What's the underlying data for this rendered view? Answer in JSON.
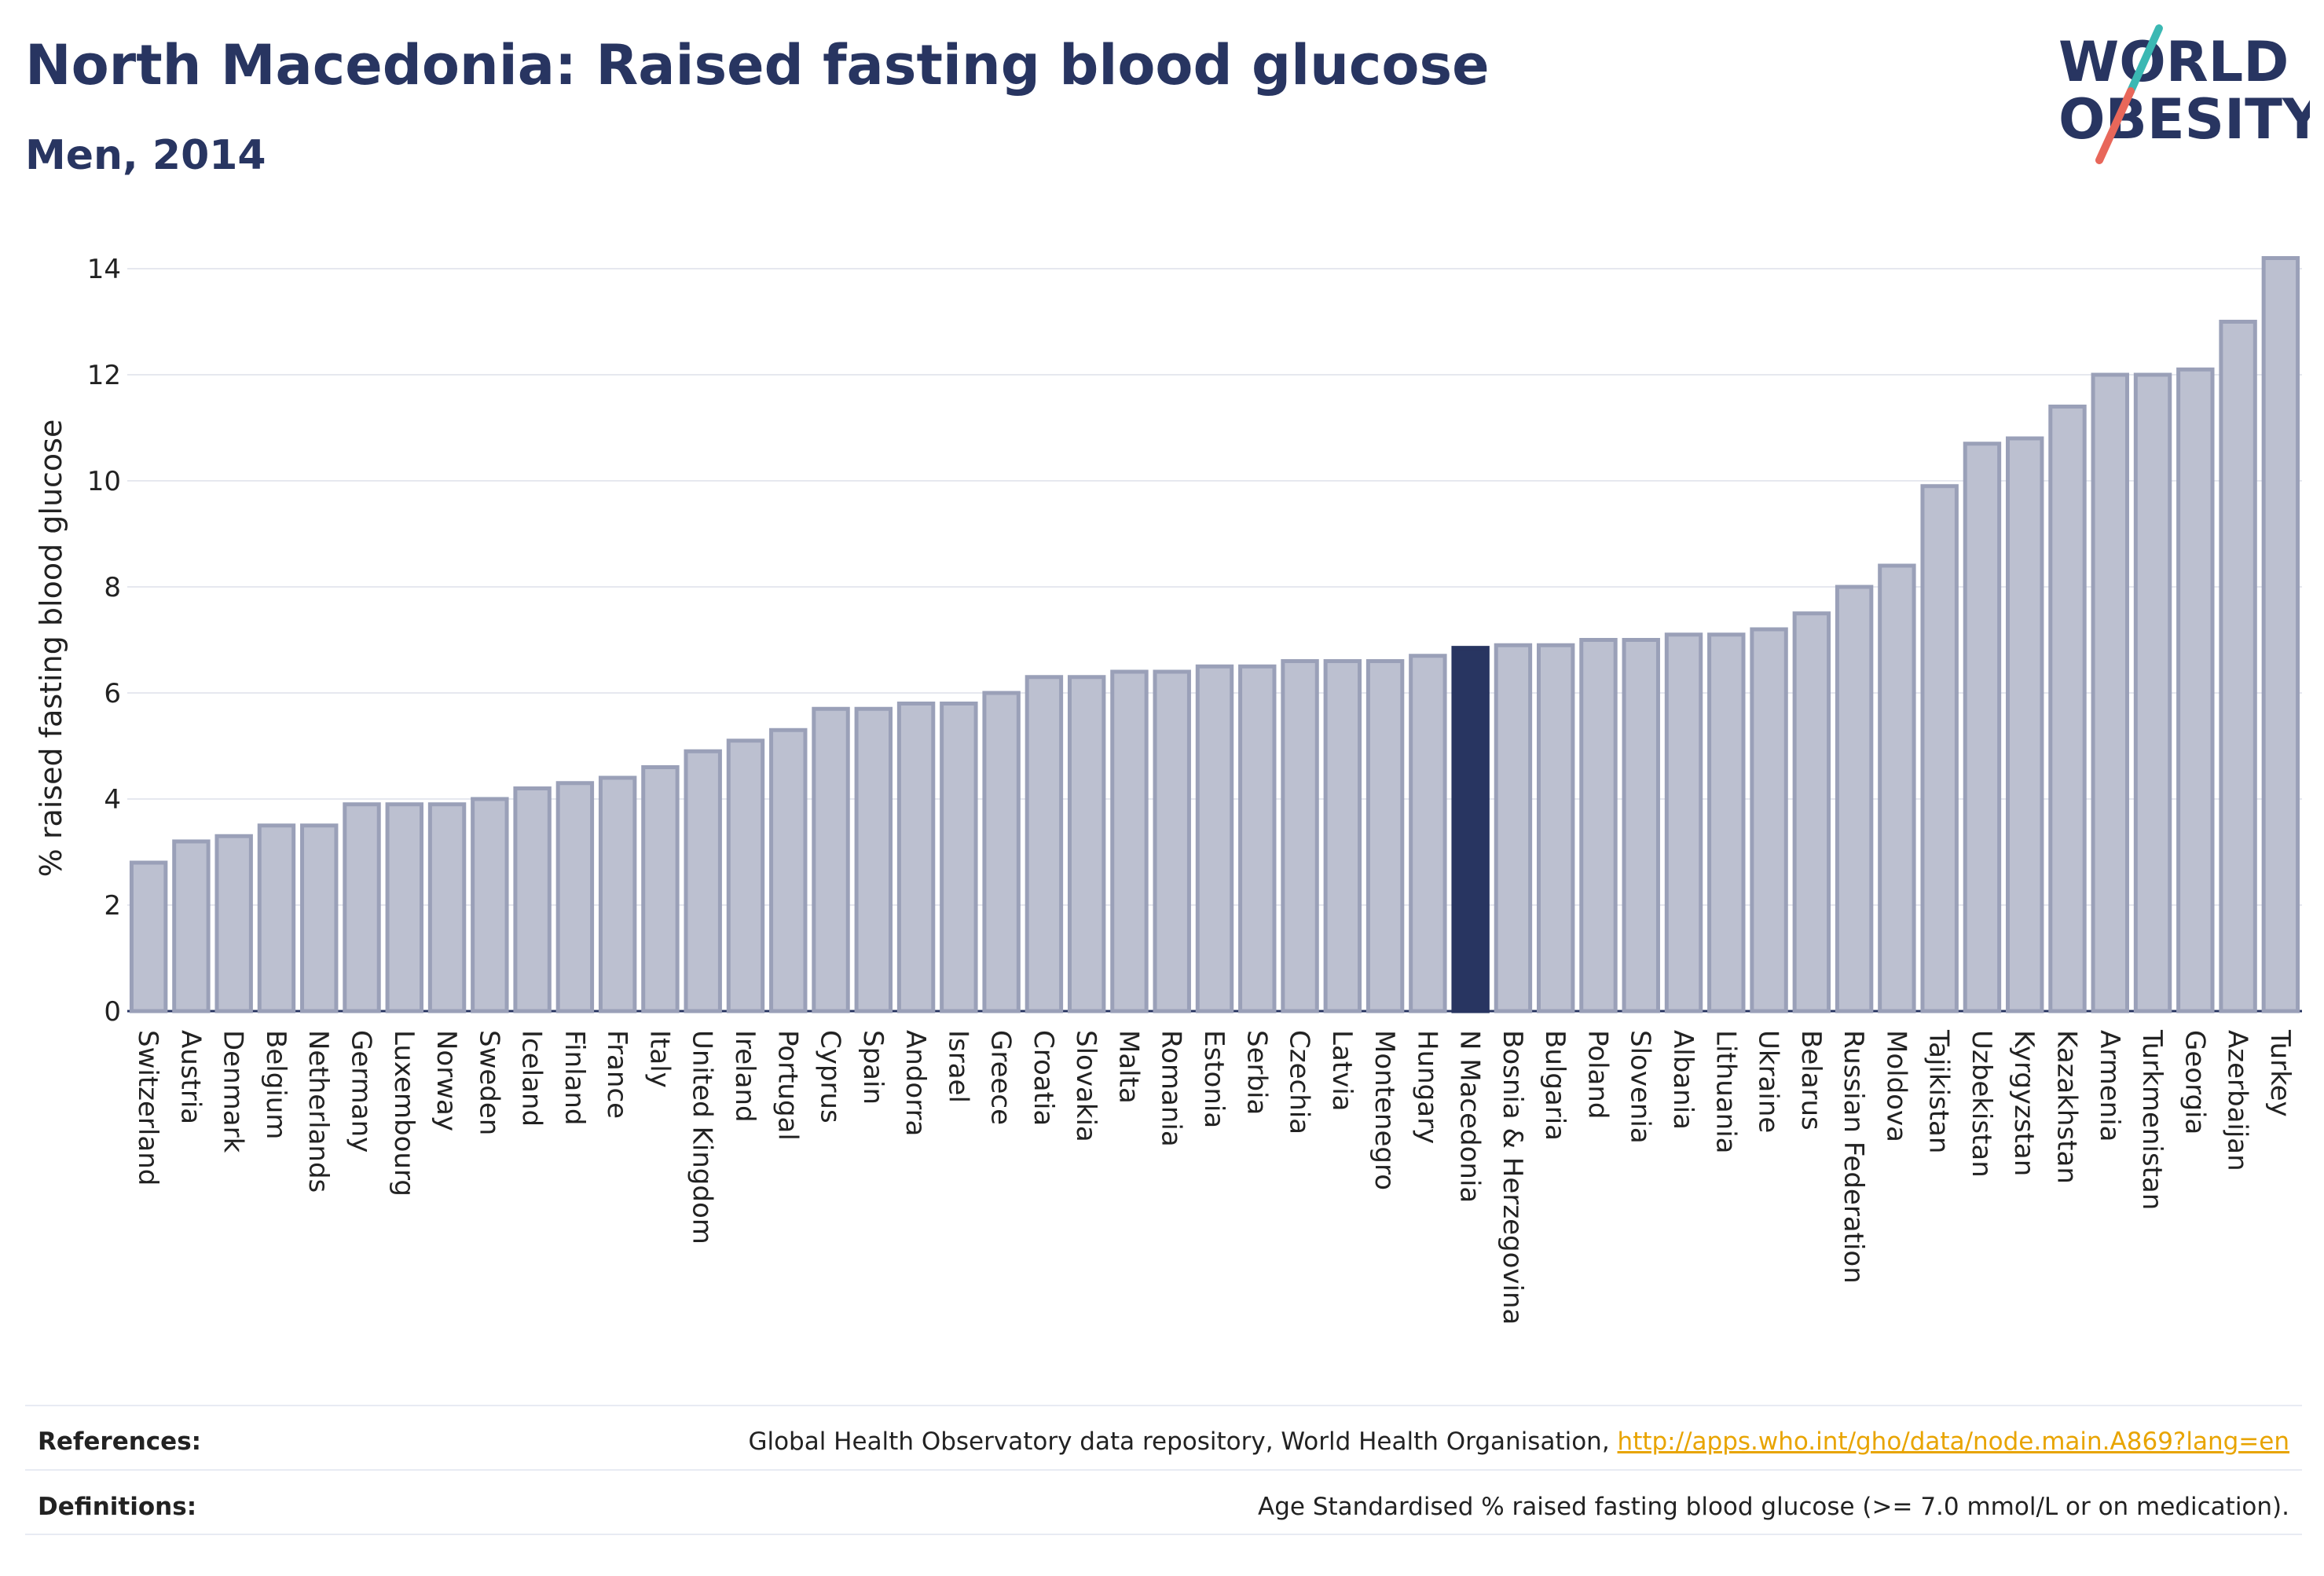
{
  "header": {
    "title": "North Macedonia: Raised fasting blood glucose",
    "subtitle": "Men, 2014"
  },
  "logo": {
    "line1": "WORLD",
    "line2": "OBESITY",
    "text_color": "#283561",
    "slash_colors": [
      "#3bb8b3",
      "#e8675a"
    ]
  },
  "colors": {
    "bar_fill": "#bcc0d0",
    "bar_stroke": "#9aa0b8",
    "highlight": "#283561",
    "grid": "#e6e8ef",
    "axis_text": "#222222"
  },
  "chart_data": {
    "type": "bar",
    "ylabel": "% raised fasting blood glucose",
    "xlabel": "",
    "ylim": [
      0,
      14.6
    ],
    "yticks": [
      0,
      2,
      4,
      6,
      8,
      10,
      12,
      14
    ],
    "highlight_category": "N Macedonia",
    "categories": [
      "Switzerland",
      "Austria",
      "Denmark",
      "Belgium",
      "Netherlands",
      "Germany",
      "Luxembourg",
      "Norway",
      "Sweden",
      "Iceland",
      "Finland",
      "France",
      "Italy",
      "United Kingdom",
      "Ireland",
      "Portugal",
      "Cyprus",
      "Spain",
      "Andorra",
      "Israel",
      "Greece",
      "Croatia",
      "Slovakia",
      "Malta",
      "Romania",
      "Estonia",
      "Serbia",
      "Czechia",
      "Latvia",
      "Montenegro",
      "Hungary",
      "N Macedonia",
      "Bosnia & Herzegovina",
      "Bulgaria",
      "Poland",
      "Slovenia",
      "Albania",
      "Lithuania",
      "Ukraine",
      "Belarus",
      "Russian Federation",
      "Moldova",
      "Tajikistan",
      "Uzbekistan",
      "Kyrgyzstan",
      "Kazakhstan",
      "Armenia",
      "Turkmenistan",
      "Georgia",
      "Azerbaijan",
      "Turkey"
    ],
    "values": [
      2.8,
      3.2,
      3.3,
      3.5,
      3.5,
      3.9,
      3.9,
      3.9,
      4.0,
      4.2,
      4.3,
      4.4,
      4.6,
      4.9,
      5.1,
      5.3,
      5.7,
      5.7,
      5.8,
      5.8,
      6.0,
      6.3,
      6.3,
      6.4,
      6.4,
      6.5,
      6.5,
      6.6,
      6.6,
      6.6,
      6.7,
      6.85,
      6.9,
      6.9,
      7.0,
      7.0,
      7.1,
      7.1,
      7.2,
      7.5,
      8.0,
      8.4,
      9.9,
      10.7,
      10.8,
      11.4,
      12.0,
      12.0,
      12.1,
      13.0,
      14.2
    ]
  },
  "footer": {
    "references_label": "References:",
    "references_text": "Global Health Observatory data repository, World Health Organisation, ",
    "references_link": "http://apps.who.int/gho/data/node.main.A869?lang=en",
    "definitions_label": "Definitions:",
    "definitions_text": "Age Standardised % raised fasting blood glucose (>= 7.0 mmol/L or on medication)."
  }
}
